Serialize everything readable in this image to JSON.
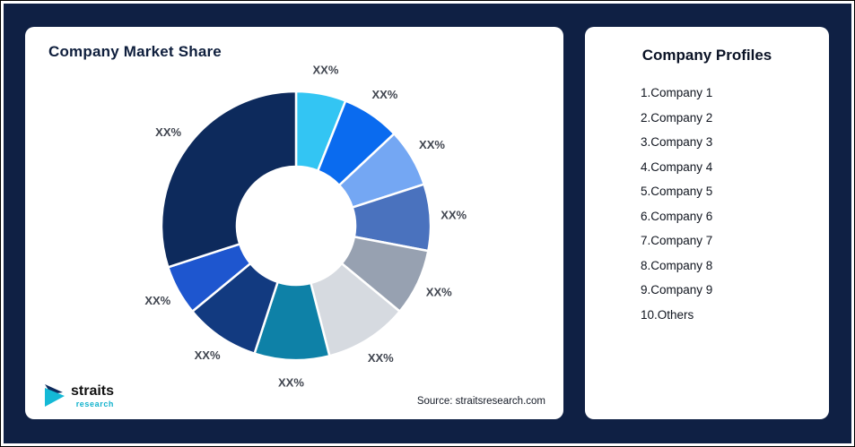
{
  "colors": {
    "page_bg": "#0F2044",
    "card_bg": "#ffffff",
    "title_color": "#0f1f3d",
    "label_color": "#40454f",
    "logo_teal": "#12b2cc",
    "logo_navy": "#0d2a5c"
  },
  "left_card": {
    "title": "Company Market Share",
    "source": "Source: straitsresearch.com",
    "logo_name": "straits",
    "logo_sub": "research"
  },
  "right_card": {
    "title": "Company Profiles",
    "items": [
      "1.Company 1",
      "2.Company 2",
      "3.Company 3",
      "4.Company 4",
      "5.Company 5",
      "6.Company 6",
      "7.Company 7",
      "8.Company 8",
      "9.Company 9",
      "10.Others"
    ]
  },
  "chart_data": {
    "type": "pie",
    "variant": "donut",
    "title": "Company Market Share",
    "value_labels_shown": "XX%",
    "legend_position": "none",
    "segments": [
      {
        "label": "XX%",
        "value": 6,
        "color": "#33C5F3"
      },
      {
        "label": "XX%",
        "value": 7,
        "color": "#0A6BEF"
      },
      {
        "label": "XX%",
        "value": 7,
        "color": "#74A7F3"
      },
      {
        "label": "XX%",
        "value": 8,
        "color": "#4A72BE"
      },
      {
        "label": "XX%",
        "value": 8,
        "color": "#97A1B1"
      },
      {
        "label": "XX%",
        "value": 10,
        "color": "#D6DAE0"
      },
      {
        "label": "XX%",
        "value": 9,
        "color": "#0E81A7"
      },
      {
        "label": "XX%",
        "value": 9,
        "color": "#123A80"
      },
      {
        "label": "XX%",
        "value": 6,
        "color": "#1E56CF"
      },
      {
        "label": "XX%",
        "value": 30,
        "color": "#0D2A5C"
      }
    ]
  }
}
